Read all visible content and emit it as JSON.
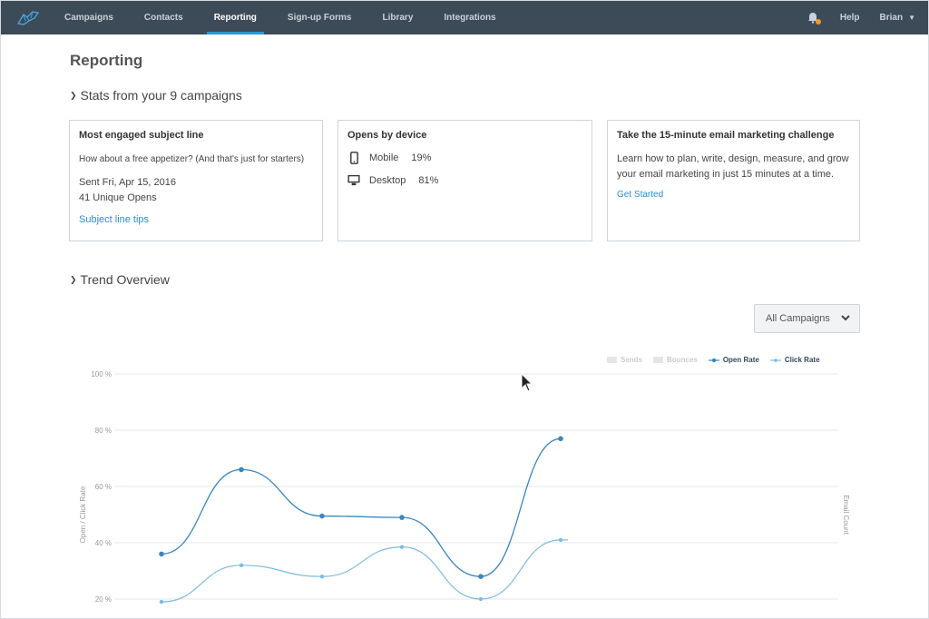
{
  "nav": {
    "items": [
      {
        "label": "Campaigns"
      },
      {
        "label": "Contacts"
      },
      {
        "label": "Reporting"
      },
      {
        "label": "Sign-up Forms"
      },
      {
        "label": "Library"
      },
      {
        "label": "Integrations"
      }
    ],
    "help": "Help",
    "user": "Brian"
  },
  "page": {
    "title": "Reporting",
    "stats_heading": "Stats from your 9 campaigns",
    "trend_heading": "Trend Overview"
  },
  "cards": {
    "subject": {
      "title": "Most engaged subject line",
      "subject_line": "How about a free appetizer? (And that's just for starters)",
      "sent": "Sent Fri, Apr 15, 2016",
      "opens": "41 Unique Opens",
      "link": "Subject line tips"
    },
    "device": {
      "title": "Opens by device",
      "mobile_label": "Mobile",
      "mobile_value": "19%",
      "desktop_label": "Desktop",
      "desktop_value": "81%"
    },
    "challenge": {
      "title": "Take the 15-minute email marketing challenge",
      "body": "Learn how to plan, write, design, measure, and grow your email marketing in just 15 minutes at a time.",
      "link": "Get Started"
    }
  },
  "filter": {
    "selected": "All Campaigns"
  },
  "legend": {
    "sends": "Sends",
    "bounces": "Bounces",
    "open_rate": "Open Rate",
    "click_rate": "Click Rate"
  },
  "colors": {
    "open_rate": "#3a86c0",
    "click_rate": "#7cbde0",
    "nav_bg": "#3d4a57",
    "accent": "#2c97d6"
  },
  "chart_data": {
    "type": "line",
    "ylabel": "Open / Click Rate",
    "y2label": "Email Count",
    "y_ticks": [
      "100 %",
      "80 %",
      "60 %",
      "40 %",
      "20 %"
    ],
    "y_tick_values": [
      100,
      80,
      60,
      40,
      20
    ],
    "ylim": [
      20,
      100
    ],
    "legend_position": "top-right",
    "grid": true,
    "series": [
      {
        "name": "Open Rate",
        "values": [
          36,
          66,
          49.5,
          49,
          28,
          77
        ]
      },
      {
        "name": "Click Rate",
        "values": [
          19,
          32,
          28,
          38.5,
          20,
          41
        ]
      }
    ]
  }
}
